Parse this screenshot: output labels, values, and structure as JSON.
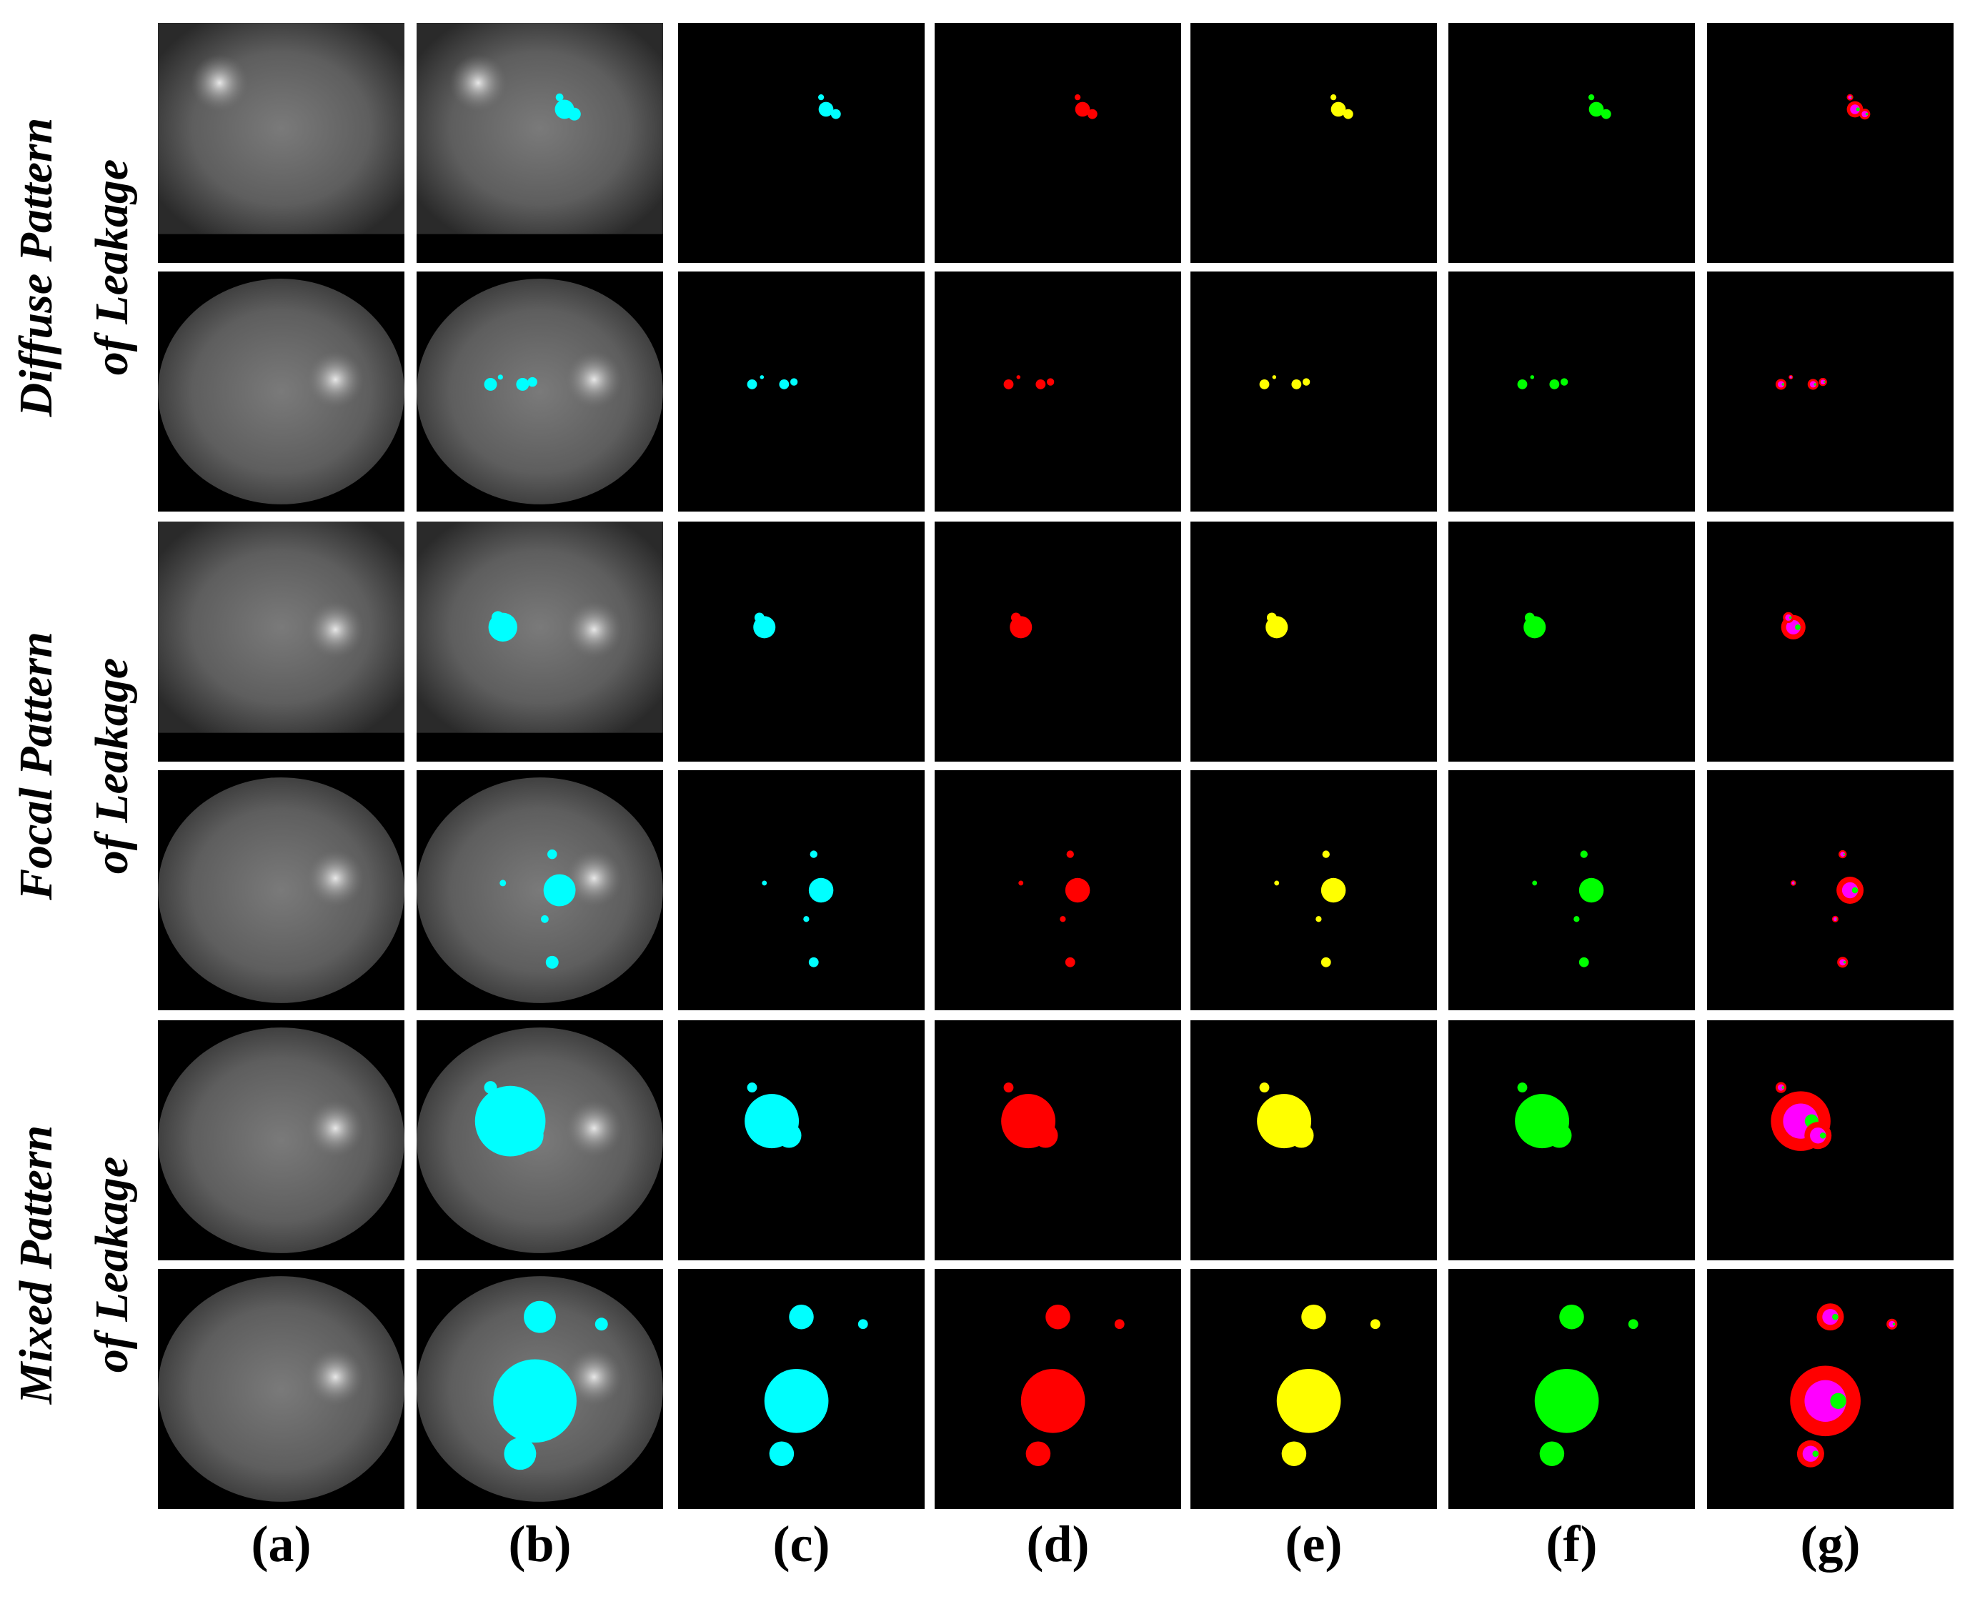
{
  "row_groups": [
    {
      "line1": "Diffuse Pattern",
      "line2": "of Leakage"
    },
    {
      "line1": "Focal Pattern",
      "line2": "of Leakage"
    },
    {
      "line1": "Mixed Pattern",
      "line2": "of Leakage"
    }
  ],
  "columns": [
    "(a)",
    "(b)",
    "(c)",
    "(d)",
    "(e)",
    "(f)",
    "(g)"
  ]
}
